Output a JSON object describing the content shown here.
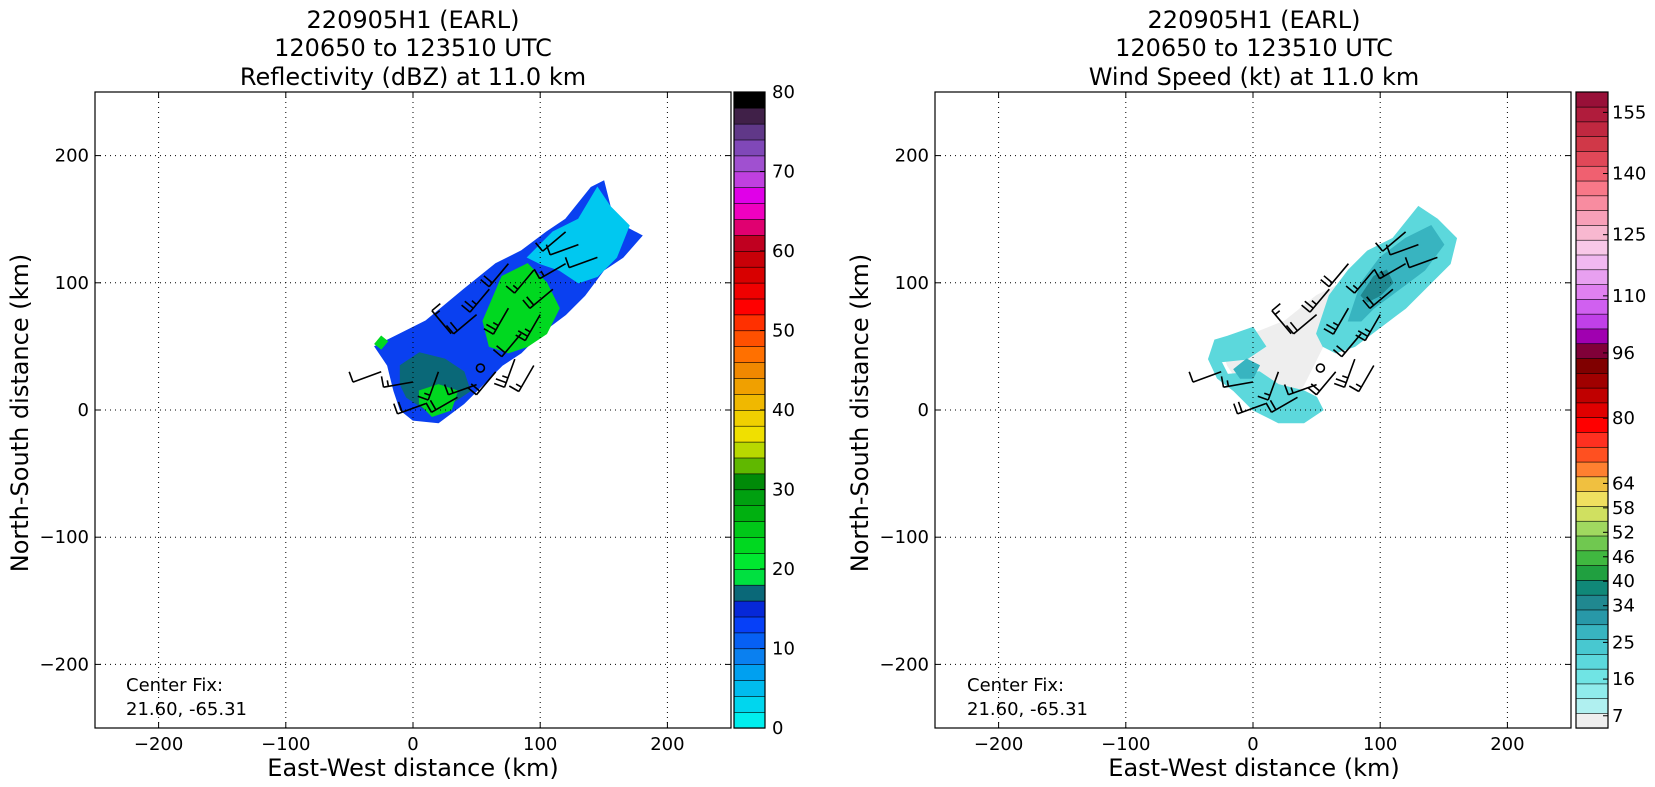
{
  "chart_data": [
    {
      "type": "heatmap",
      "panel_id": "left",
      "title_lines": [
        "220905H1 (EARL)",
        "120650 to 123510 UTC",
        "Reflectivity (dBZ) at 11.0 km"
      ],
      "xlabel": "East-West distance (km)",
      "ylabel": "North-South distance (km)",
      "xlim": [
        -250,
        250
      ],
      "ylim": [
        -250,
        250
      ],
      "xticks": [
        -200,
        -100,
        0,
        100,
        200
      ],
      "yticks": [
        -200,
        -100,
        0,
        100,
        200
      ],
      "xtick_labels": [
        "−200",
        "−100",
        "0",
        "100",
        "200"
      ],
      "ytick_labels": [
        "−200",
        "−100",
        "0",
        "100",
        "200"
      ],
      "grid": true,
      "annotation": [
        "Center Fix:",
        "21.60, -65.31"
      ],
      "colorbar": {
        "min": 0,
        "max": 80,
        "ticks": [
          0,
          10,
          20,
          30,
          40,
          50,
          60,
          70,
          80
        ],
        "colors": [
          "#00eeee",
          "#00d6ee",
          "#00bcee",
          "#00a0f0",
          "#0a80f0",
          "#0660f4",
          "#0640f8",
          "#0628d8",
          "#0a6878",
          "#00e040",
          "#00e830",
          "#00d820",
          "#00c818",
          "#00b010",
          "#00a010",
          "#008a08",
          "#60b800",
          "#b8d800",
          "#f0e000",
          "#f0d000",
          "#f0b800",
          "#f0a000",
          "#f08800",
          "#ff7000",
          "#ff5000",
          "#ff3000",
          "#ff0000",
          "#f00000",
          "#d80000",
          "#c80008",
          "#c00020",
          "#e00070",
          "#f000c0",
          "#e000e8",
          "#c040e0",
          "#a050d0",
          "#8048b8",
          "#603888",
          "#402048",
          "#000000"
        ]
      },
      "field_layers": [
        {
          "color": "#0a40f0",
          "polygons": [
            [
              [
                -30,
                50
              ],
              [
                -10,
                60
              ],
              [
                10,
                70
              ],
              [
                40,
                95
              ],
              [
                65,
                115
              ],
              [
                85,
                125
              ],
              [
                105,
                140
              ],
              [
                120,
                150
              ],
              [
                140,
                175
              ],
              [
                150,
                180
              ],
              [
                155,
                160
              ],
              [
                165,
                145
              ],
              [
                180,
                137
              ],
              [
                165,
                120
              ],
              [
                150,
                110
              ],
              [
                135,
                90
              ],
              [
                120,
                75
              ],
              [
                100,
                60
              ],
              [
                85,
                45
              ],
              [
                70,
                35
              ],
              [
                55,
                20
              ],
              [
                40,
                5
              ],
              [
                20,
                -10
              ],
              [
                0,
                -8
              ],
              [
                -10,
                0
              ],
              [
                -15,
                15
              ],
              [
                -20,
                35
              ]
            ]
          ]
        },
        {
          "color": "#00c8f0",
          "polygons": [
            [
              [
                90,
                120
              ],
              [
                110,
                140
              ],
              [
                130,
                150
              ],
              [
                145,
                175
              ],
              [
                155,
                160
              ],
              [
                170,
                145
              ],
              [
                160,
                120
              ],
              [
                145,
                105
              ],
              [
                130,
                100
              ],
              [
                115,
                110
              ],
              [
                100,
                115
              ]
            ]
          ]
        },
        {
          "color": "#0a6878",
          "polygons": [
            [
              [
                -10,
                35
              ],
              [
                5,
                45
              ],
              [
                25,
                40
              ],
              [
                40,
                30
              ],
              [
                45,
                15
              ],
              [
                30,
                5
              ],
              [
                10,
                0
              ],
              [
                -5,
                10
              ],
              [
                -10,
                20
              ]
            ]
          ]
        },
        {
          "color": "#00d820",
          "polygons": [
            [
              [
                55,
                70
              ],
              [
                70,
                105
              ],
              [
                90,
                115
              ],
              [
                105,
                100
              ],
              [
                115,
                80
              ],
              [
                105,
                60
              ],
              [
                90,
                50
              ],
              [
                75,
                45
              ],
              [
                60,
                50
              ]
            ],
            [
              [
                5,
                15
              ],
              [
                20,
                20
              ],
              [
                35,
                15
              ],
              [
                30,
                0
              ],
              [
                15,
                -5
              ],
              [
                5,
                5
              ]
            ],
            [
              [
                -30,
                52
              ],
              [
                -25,
                58
              ],
              [
                -20,
                54
              ],
              [
                -25,
                48
              ]
            ]
          ]
        }
      ],
      "wind_barbs": [
        {
          "x": -25,
          "y": 30,
          "speed": 10,
          "dir": 250
        },
        {
          "x": 0,
          "y": 22,
          "speed": 15,
          "dir": 260
        },
        {
          "x": 20,
          "y": 30,
          "speed": 15,
          "dir": 200
        },
        {
          "x": 35,
          "y": 10,
          "speed": 20,
          "dir": 240
        },
        {
          "x": 50,
          "y": 20,
          "speed": 15,
          "dir": 250
        },
        {
          "x": 65,
          "y": 30,
          "speed": 20,
          "dir": 220
        },
        {
          "x": 80,
          "y": 40,
          "speed": 25,
          "dir": 200
        },
        {
          "x": 95,
          "y": 35,
          "speed": 15,
          "dir": 210
        },
        {
          "x": 30,
          "y": 60,
          "speed": 15,
          "dir": 320
        },
        {
          "x": 50,
          "y": 75,
          "speed": 20,
          "dir": 230
        },
        {
          "x": 60,
          "y": 95,
          "speed": 25,
          "dir": 220
        },
        {
          "x": 75,
          "y": 80,
          "speed": 25,
          "dir": 210
        },
        {
          "x": 85,
          "y": 60,
          "speed": 20,
          "dir": 220
        },
        {
          "x": 100,
          "y": 75,
          "speed": 25,
          "dir": 210
        },
        {
          "x": 110,
          "y": 95,
          "speed": 20,
          "dir": 230
        },
        {
          "x": 95,
          "y": 110,
          "speed": 15,
          "dir": 220
        },
        {
          "x": 120,
          "y": 115,
          "speed": 15,
          "dir": 240
        },
        {
          "x": 130,
          "y": 130,
          "speed": 10,
          "dir": 250
        },
        {
          "x": 145,
          "y": 120,
          "speed": 10,
          "dir": 250
        },
        {
          "x": 120,
          "y": 140,
          "speed": 10,
          "dir": 230
        },
        {
          "x": 75,
          "y": 115,
          "speed": 20,
          "dir": 220
        },
        {
          "x": 10,
          "y": 5,
          "speed": 20,
          "dir": 250
        }
      ],
      "center_marker": {
        "x": 53,
        "y": 33
      }
    },
    {
      "type": "heatmap",
      "panel_id": "right",
      "title_lines": [
        "220905H1 (EARL)",
        "120650 to 123510 UTC",
        "Wind Speed (kt) at 11.0 km"
      ],
      "xlabel": "East-West distance (km)",
      "ylabel": "North-South distance (km)",
      "xlim": [
        -250,
        250
      ],
      "ylim": [
        -250,
        250
      ],
      "xticks": [
        -200,
        -100,
        0,
        100,
        200
      ],
      "yticks": [
        -200,
        -100,
        0,
        100,
        200
      ],
      "xtick_labels": [
        "−200",
        "−100",
        "0",
        "100",
        "200"
      ],
      "ytick_labels": [
        "−200",
        "−100",
        "0",
        "100",
        "200"
      ],
      "grid": true,
      "annotation": [
        "Center Fix:",
        "21.60, -65.31"
      ],
      "colorbar": {
        "min": 4,
        "max": 160,
        "ticks": [
          7,
          16,
          25,
          34,
          40,
          46,
          52,
          58,
          64,
          80,
          96,
          110,
          125,
          140,
          155
        ],
        "colors": [
          "#eeeeee",
          "#b0f0f0",
          "#90ecec",
          "#70e4e4",
          "#5cd8dc",
          "#48c8d0",
          "#38b4c0",
          "#2898a8",
          "#208890",
          "#108878",
          "#20a040",
          "#40b840",
          "#70c850",
          "#a0d860",
          "#d0e060",
          "#f0e060",
          "#f0c040",
          "#ff8030",
          "#ff5020",
          "#ff3020",
          "#ff0000",
          "#e00000",
          "#c00000",
          "#a00000",
          "#800000",
          "#800038",
          "#a000b0",
          "#c040e8",
          "#d060f0",
          "#e080f0",
          "#e8a0f0",
          "#f0b8f0",
          "#f8c8e8",
          "#f8b8d0",
          "#f8a0b8",
          "#f88ca0",
          "#f87888",
          "#f06070",
          "#e04858",
          "#d03848",
          "#c02840",
          "#b01c3c",
          "#981038"
        ]
      },
      "field_layers": [
        {
          "color": "#eeeeee",
          "polygons": [
            [
              [
                -25,
                50
              ],
              [
                0,
                60
              ],
              [
                25,
                70
              ],
              [
                50,
                90
              ],
              [
                70,
                100
              ],
              [
                90,
                110
              ],
              [
                80,
                80
              ],
              [
                60,
                60
              ],
              [
                50,
                40
              ],
              [
                40,
                20
              ],
              [
                30,
                5
              ],
              [
                10,
                5
              ],
              [
                -10,
                20
              ],
              [
                -20,
                35
              ]
            ]
          ]
        },
        {
          "color": "#5cd8dc",
          "polygons": [
            [
              [
                -20,
                58
              ],
              [
                0,
                65
              ],
              [
                10,
                50
              ],
              [
                -5,
                40
              ],
              [
                -25,
                38
              ],
              [
                -20,
                28
              ],
              [
                5,
                30
              ],
              [
                20,
                20
              ],
              [
                40,
                15
              ],
              [
                50,
                10
              ],
              [
                55,
                0
              ],
              [
                40,
                -10
              ],
              [
                20,
                -10
              ],
              [
                0,
                0
              ],
              [
                -15,
                15
              ],
              [
                -28,
                25
              ],
              [
                -35,
                40
              ],
              [
                -30,
                55
              ]
            ],
            [
              [
                50,
                60
              ],
              [
                60,
                90
              ],
              [
                75,
                110
              ],
              [
                90,
                125
              ],
              [
                110,
                135
              ],
              [
                130,
                160
              ],
              [
                145,
                150
              ],
              [
                160,
                135
              ],
              [
                155,
                115
              ],
              [
                140,
                100
              ],
              [
                120,
                80
              ],
              [
                100,
                65
              ],
              [
                80,
                50
              ],
              [
                65,
                45
              ],
              [
                55,
                50
              ]
            ]
          ]
        },
        {
          "color": "#38b4c0",
          "polygons": [
            [
              [
                75,
                70
              ],
              [
                85,
                100
              ],
              [
                100,
                120
              ],
              [
                120,
                135
              ],
              [
                140,
                145
              ],
              [
                150,
                130
              ],
              [
                135,
                110
              ],
              [
                115,
                95
              ],
              [
                95,
                80
              ],
              [
                85,
                70
              ]
            ],
            [
              [
                -15,
                32
              ],
              [
                -5,
                40
              ],
              [
                5,
                35
              ],
              [
                0,
                25
              ],
              [
                -10,
                25
              ]
            ]
          ]
        },
        {
          "color": "#208890",
          "polygons": [
            [
              [
                85,
                90
              ],
              [
                95,
                105
              ],
              [
                105,
                110
              ],
              [
                110,
                100
              ],
              [
                100,
                90
              ],
              [
                90,
                85
              ]
            ]
          ]
        }
      ],
      "wind_barbs": [
        {
          "x": -25,
          "y": 30,
          "speed": 10,
          "dir": 250
        },
        {
          "x": 0,
          "y": 22,
          "speed": 15,
          "dir": 260
        },
        {
          "x": 20,
          "y": 30,
          "speed": 15,
          "dir": 200
        },
        {
          "x": 35,
          "y": 10,
          "speed": 20,
          "dir": 240
        },
        {
          "x": 50,
          "y": 20,
          "speed": 15,
          "dir": 250
        },
        {
          "x": 65,
          "y": 30,
          "speed": 20,
          "dir": 220
        },
        {
          "x": 80,
          "y": 40,
          "speed": 25,
          "dir": 200
        },
        {
          "x": 95,
          "y": 35,
          "speed": 15,
          "dir": 210
        },
        {
          "x": 30,
          "y": 60,
          "speed": 15,
          "dir": 320
        },
        {
          "x": 50,
          "y": 75,
          "speed": 20,
          "dir": 230
        },
        {
          "x": 60,
          "y": 95,
          "speed": 25,
          "dir": 220
        },
        {
          "x": 75,
          "y": 80,
          "speed": 25,
          "dir": 210
        },
        {
          "x": 85,
          "y": 60,
          "speed": 20,
          "dir": 220
        },
        {
          "x": 100,
          "y": 75,
          "speed": 25,
          "dir": 210
        },
        {
          "x": 110,
          "y": 95,
          "speed": 20,
          "dir": 230
        },
        {
          "x": 95,
          "y": 110,
          "speed": 15,
          "dir": 220
        },
        {
          "x": 120,
          "y": 115,
          "speed": 15,
          "dir": 240
        },
        {
          "x": 130,
          "y": 130,
          "speed": 10,
          "dir": 250
        },
        {
          "x": 145,
          "y": 120,
          "speed": 10,
          "dir": 250
        },
        {
          "x": 120,
          "y": 140,
          "speed": 10,
          "dir": 230
        },
        {
          "x": 75,
          "y": 115,
          "speed": 20,
          "dir": 220
        },
        {
          "x": 10,
          "y": 5,
          "speed": 20,
          "dir": 250
        }
      ],
      "center_marker": {
        "x": 53,
        "y": 33
      }
    }
  ]
}
